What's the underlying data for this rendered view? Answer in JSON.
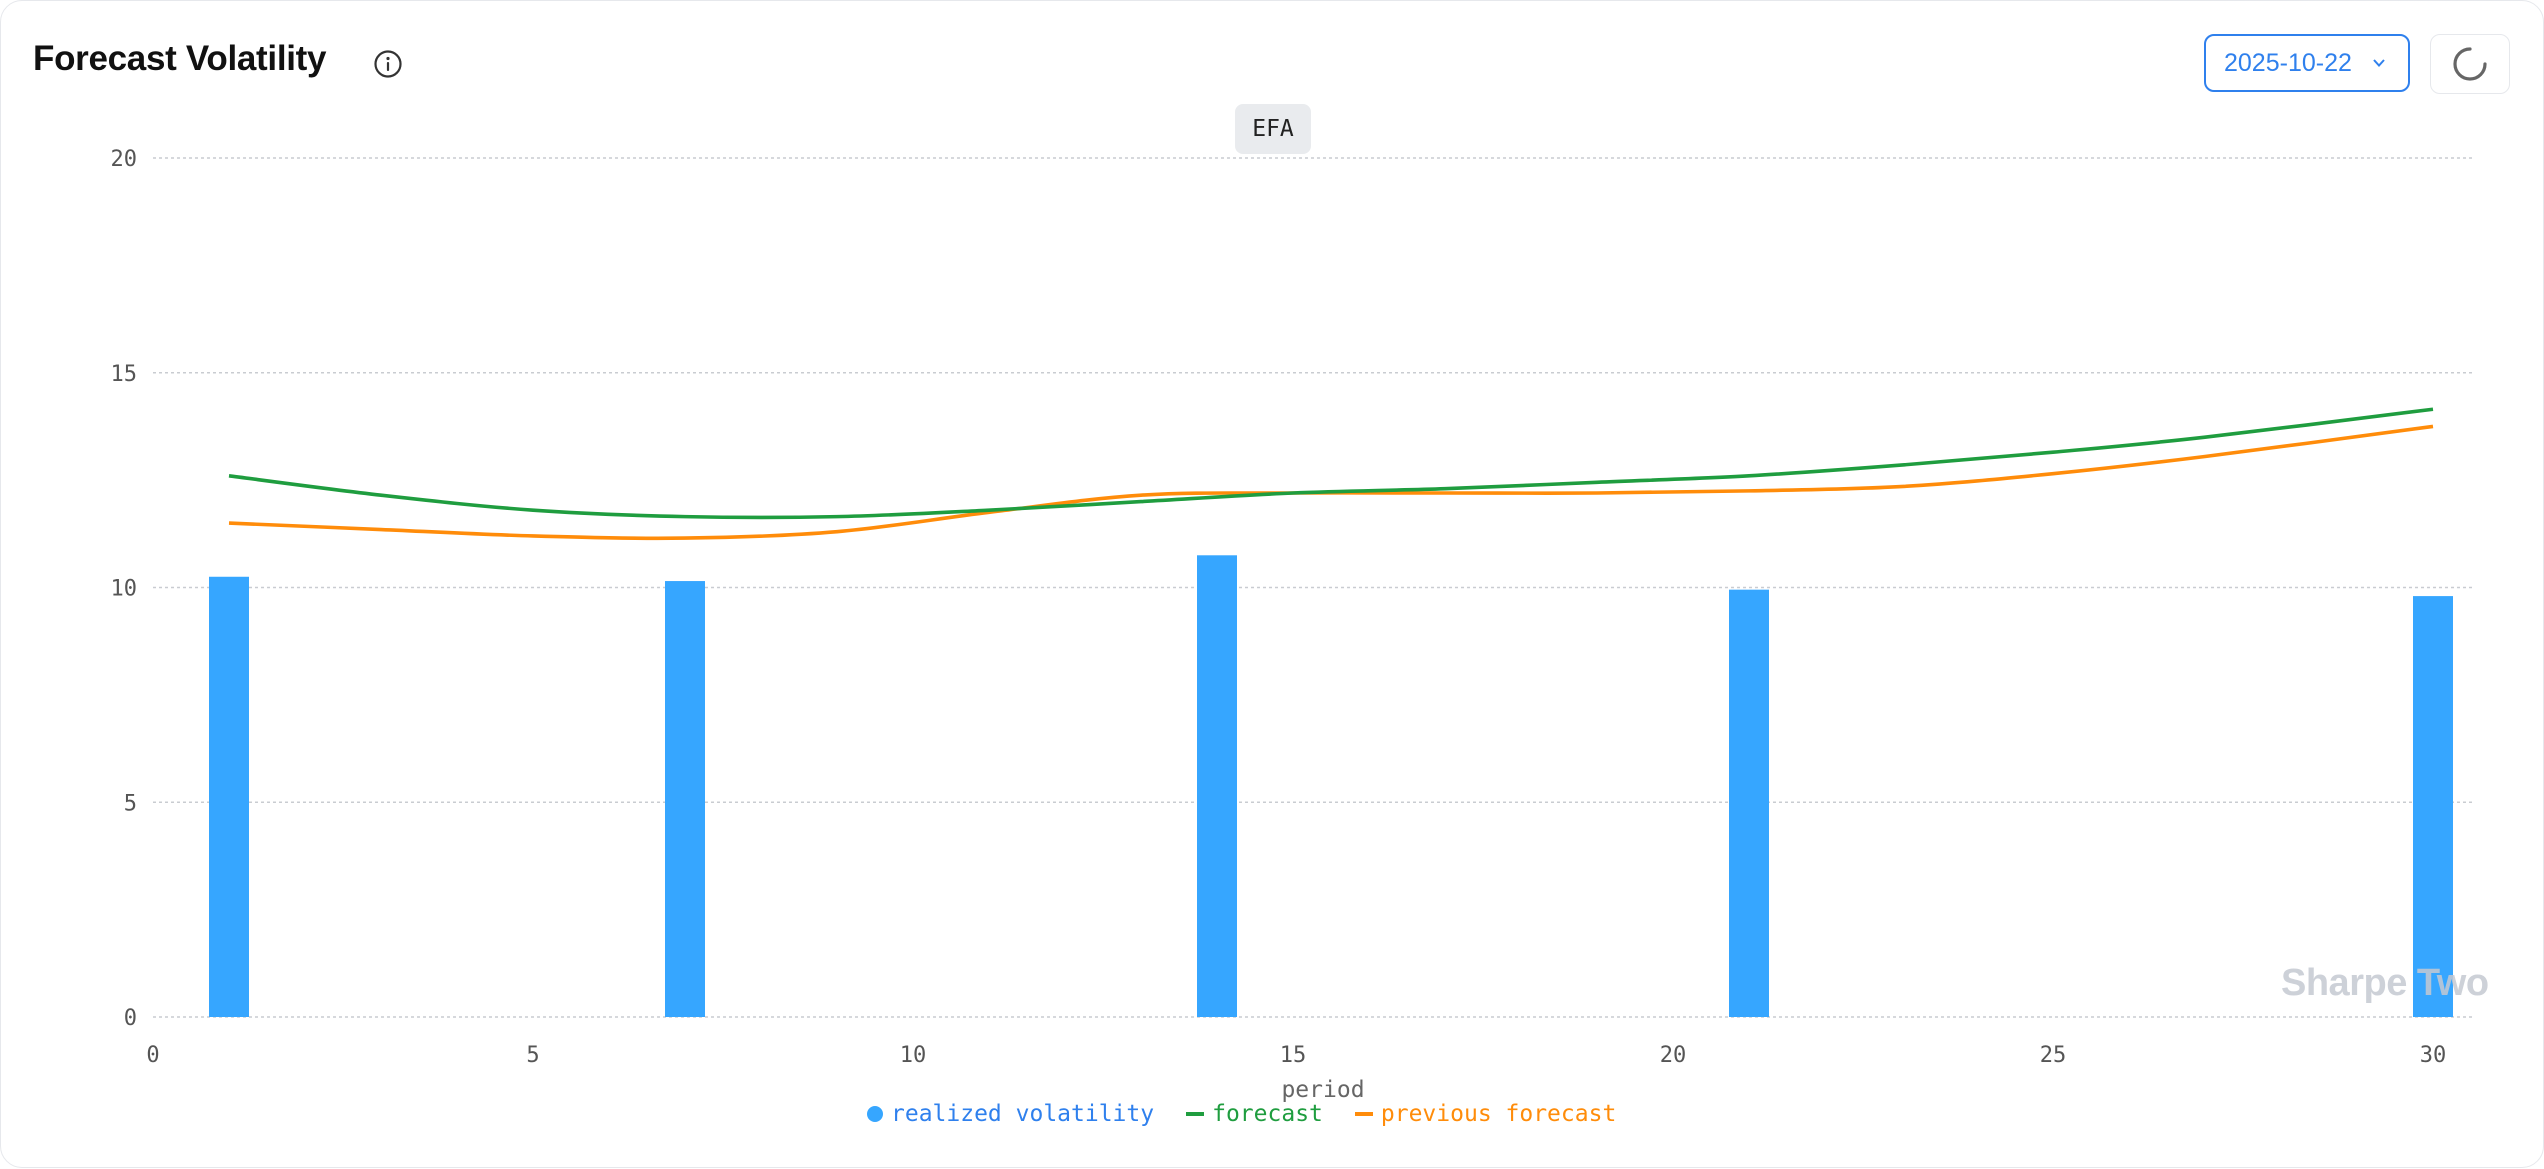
{
  "header": {
    "title": "Forecast Volatility",
    "date_value": "2025-10-22",
    "ticker": "EFA"
  },
  "icons": {
    "info": "info-circle-icon",
    "date_chevron": "chevron-down-icon",
    "refresh": "spinner-icon"
  },
  "watermark": "Sharpe Two",
  "colors": {
    "realized": "#36a6ff",
    "forecast": "#1f9d3f",
    "previous_forecast": "#ff8c0a",
    "accent": "#2f80ed"
  },
  "chart_data": {
    "type": "bar",
    "xlabel": "period",
    "ylabel": "",
    "xlim": [
      0,
      30
    ],
    "ylim": [
      0,
      20
    ],
    "x_ticks": [
      0,
      5,
      10,
      15,
      20,
      25,
      30
    ],
    "y_ticks": [
      0,
      5,
      10,
      15,
      20
    ],
    "grid": true,
    "legend_position": "bottom",
    "series": [
      {
        "name": "realized volatility",
        "kind": "bar",
        "x": [
          1,
          7,
          14,
          21,
          30
        ],
        "values": [
          10.25,
          10.15,
          10.75,
          9.95,
          9.8
        ]
      },
      {
        "name": "forecast",
        "kind": "line",
        "x": [
          1,
          3,
          5,
          7,
          9,
          11,
          13,
          15,
          17,
          19,
          21,
          23,
          25,
          27,
          30
        ],
        "values": [
          12.6,
          12.15,
          11.8,
          11.65,
          11.65,
          11.8,
          12.0,
          12.2,
          12.3,
          12.45,
          12.6,
          12.85,
          13.15,
          13.5,
          14.15
        ]
      },
      {
        "name": "previous forecast",
        "kind": "line",
        "x": [
          1,
          3,
          5,
          7,
          9,
          11,
          13,
          15,
          17,
          19,
          21,
          23,
          25,
          27,
          30
        ],
        "values": [
          11.5,
          11.35,
          11.2,
          11.15,
          11.3,
          11.75,
          12.15,
          12.2,
          12.2,
          12.2,
          12.25,
          12.35,
          12.65,
          13.05,
          13.75
        ]
      }
    ]
  }
}
